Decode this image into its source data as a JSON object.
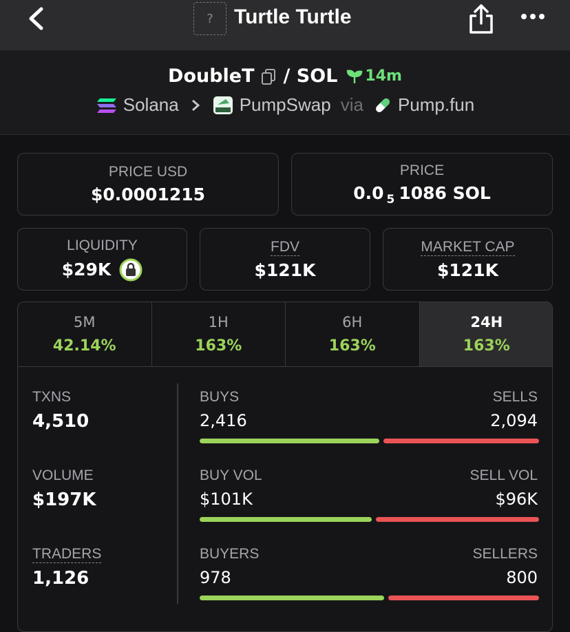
{
  "header": {
    "icon_placeholder": "?",
    "title": "Turtle Turtle"
  },
  "pair": {
    "base": "DoubleT",
    "quote": "/ SOL",
    "age": "14m"
  },
  "route": {
    "chain": "Solana",
    "dex": "PumpSwap",
    "via": "via",
    "launchpad": "Pump.fun"
  },
  "stats": {
    "price_usd": {
      "label": "PRICE USD",
      "value": "$0.0001215"
    },
    "price": {
      "label": "PRICE",
      "value_lead": "0.0",
      "value_zeros": "5",
      "value_tail": "1086 SOL"
    },
    "liquidity": {
      "label": "LIQUIDITY",
      "value": "$29K"
    },
    "fdv": {
      "label": "FDV",
      "value": "$121K"
    },
    "market_cap": {
      "label": "MARKET CAP",
      "value": "$121K"
    }
  },
  "tabs": [
    {
      "label": "5M",
      "change": "42.14%"
    },
    {
      "label": "1H",
      "change": "163%"
    },
    {
      "label": "6H",
      "change": "163%"
    },
    {
      "label": "24H",
      "change": "163%",
      "selected": true
    }
  ],
  "totals": [
    {
      "label": "TXNS",
      "value": "4,510"
    },
    {
      "label": "VOLUME",
      "value": "$197K"
    },
    {
      "label": "TRADERS",
      "value": "1,126"
    }
  ],
  "splits": [
    {
      "left_label": "BUYS",
      "left_value": "2,416",
      "right_label": "SELLS",
      "right_value": "2,094"
    },
    {
      "left_label": "BUY VOL",
      "left_value": "$101K",
      "right_label": "SELL VOL",
      "right_value": "$96K"
    },
    {
      "left_label": "BUYERS",
      "left_value": "978",
      "right_label": "SELLERS",
      "right_value": "800"
    }
  ]
}
